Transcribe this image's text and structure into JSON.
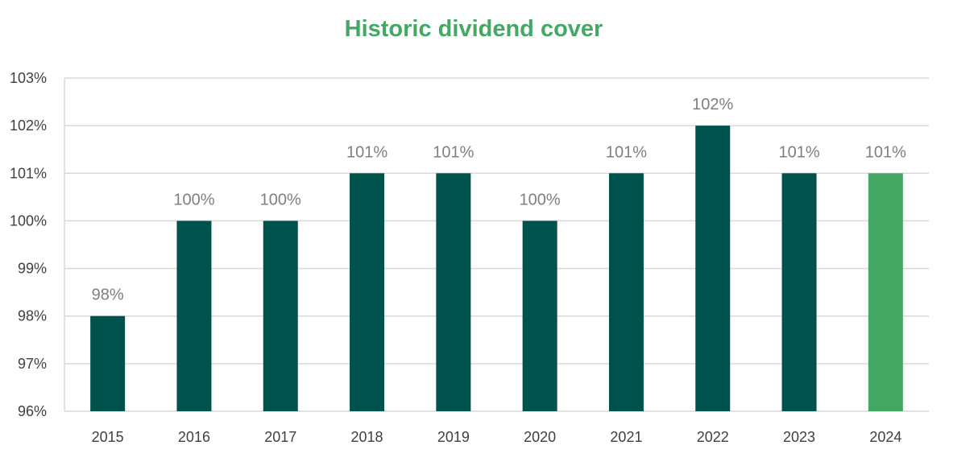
{
  "chart_data": {
    "type": "bar",
    "title": "Historic dividend cover",
    "xlabel": "",
    "ylabel": "",
    "categories": [
      "2015",
      "2016",
      "2017",
      "2018",
      "2019",
      "2020",
      "2021",
      "2022",
      "2023",
      "2024"
    ],
    "values": [
      98,
      100,
      100,
      101,
      101,
      100,
      101,
      102,
      101,
      101
    ],
    "data_labels": [
      "98%",
      "100%",
      "100%",
      "101%",
      "101%",
      "100%",
      "101%",
      "102%",
      "101%",
      "101%"
    ],
    "ylim": [
      96,
      103
    ],
    "yticks": [
      96,
      97,
      98,
      99,
      100,
      101,
      102,
      103
    ],
    "ytick_labels": [
      "96%",
      "97%",
      "98%",
      "99%",
      "100%",
      "101%",
      "102%",
      "103%"
    ],
    "grid": true,
    "legend": "none",
    "colors": {
      "bar": "#00534c",
      "highlight_bar": "#44a864",
      "title": "#44a864",
      "grid": "#d9d9d9",
      "axis_text": "#404040",
      "data_label_text": "#7f7f7f"
    },
    "highlight_index": 9
  }
}
